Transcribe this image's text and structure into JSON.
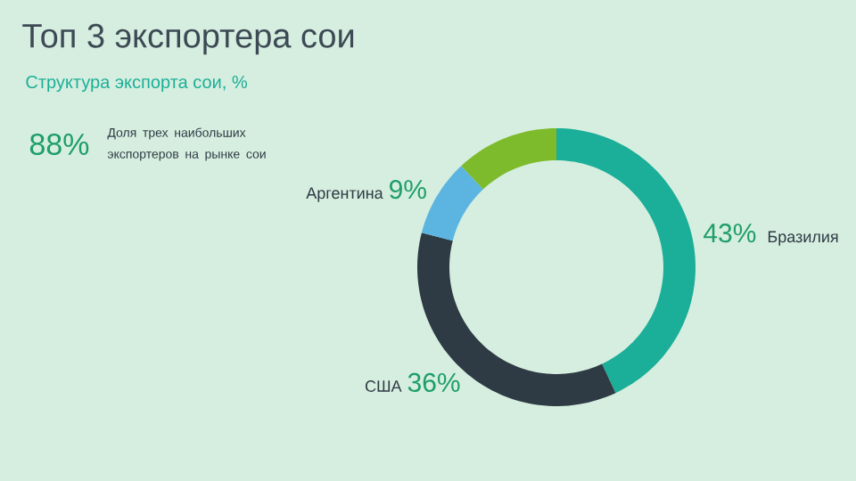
{
  "chart_data": {
    "type": "donut",
    "title": "Топ 3 экспортера сои",
    "subtitle": "Структура экспорта сои, %",
    "categories": [
      "Бразилия",
      "США",
      "Аргентина",
      null
    ],
    "values": [
      43,
      36,
      9,
      12
    ],
    "colors": [
      "#1bae98",
      "#2e3a44",
      "#5bb5e0",
      "#7dbb2c"
    ],
    "value_labels": [
      "43%",
      "36%",
      "9%",
      null
    ],
    "annotations": [
      "88%",
      "Доля трех наибольших экспортеров на рынке сои"
    ]
  }
}
